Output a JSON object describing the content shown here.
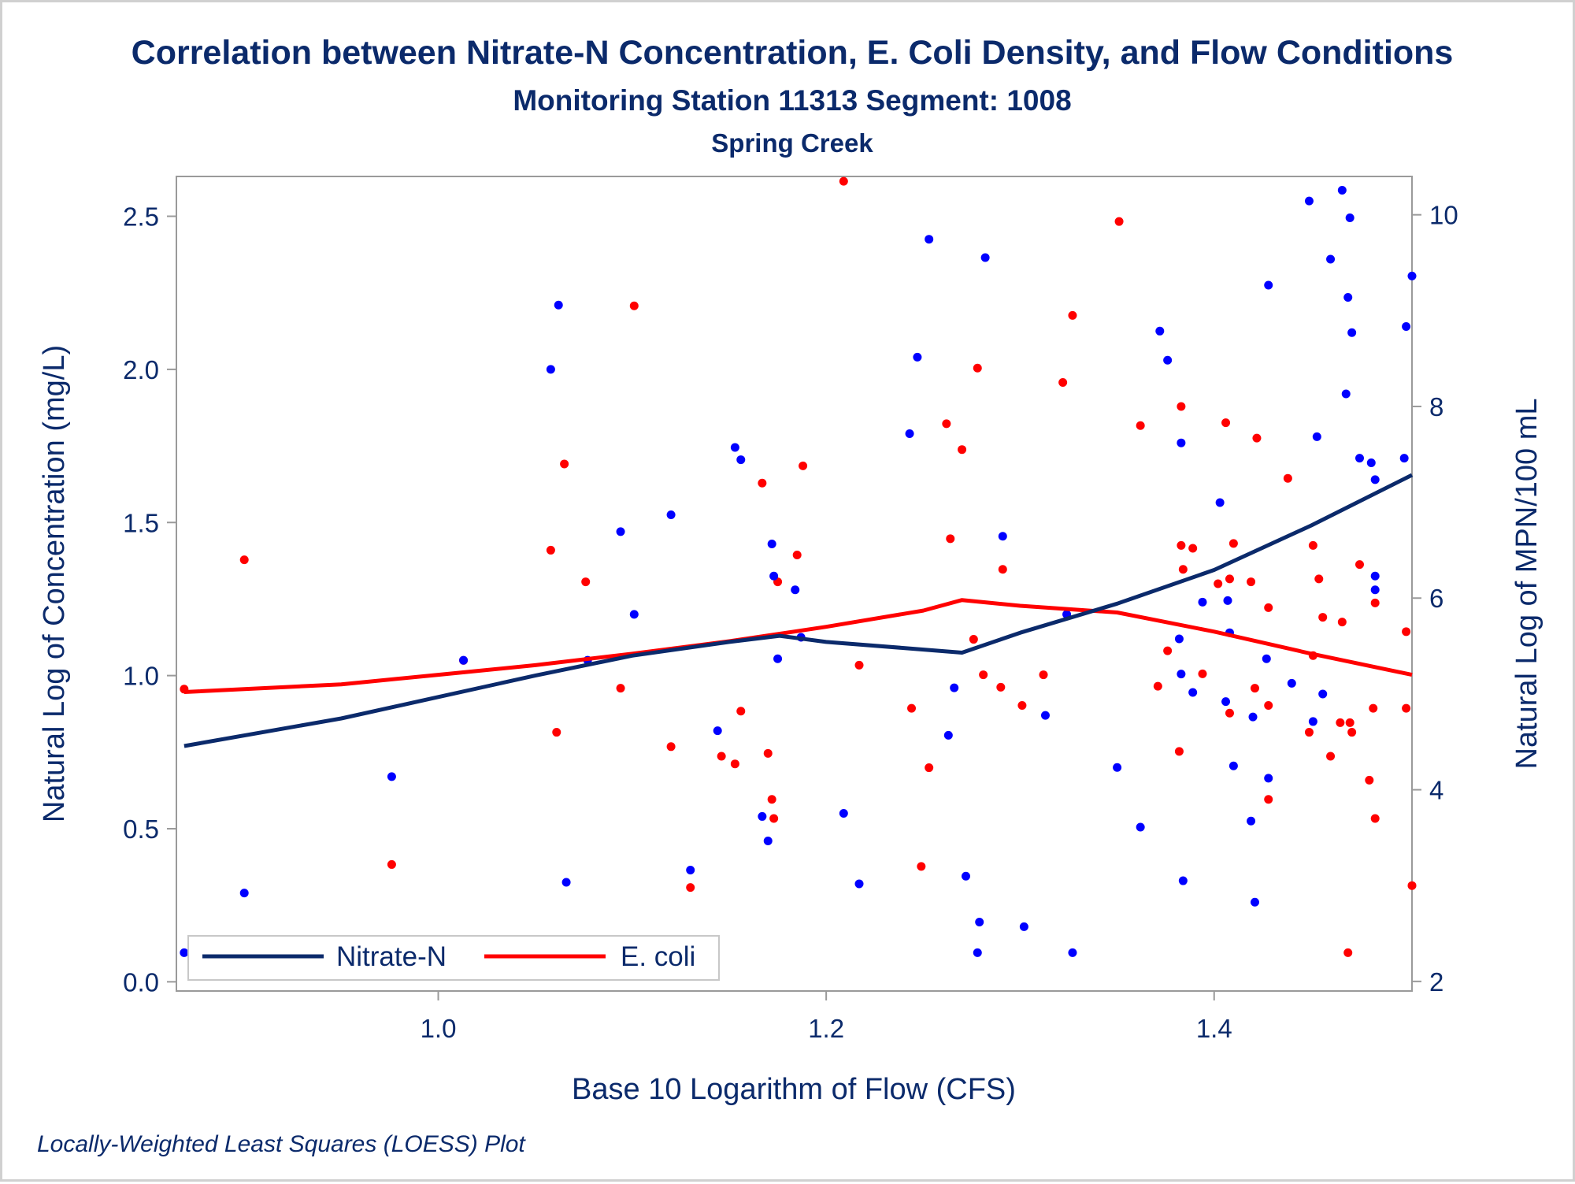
{
  "chart_data": {
    "type": "scatter",
    "title": "Correlation between Nitrate-N Concentration, E. Coli Density, and Flow Conditions",
    "subtitle": "Monitoring Station 11313 Segment: 1008",
    "subtitle2": "Spring Creek",
    "xlabel": "Base 10 Logarithm of Flow (CFS)",
    "ylabel_left": "Natural Log of Concentration (mg/L)",
    "ylabel_right": "Natural Log of MPN/100 mL",
    "footnote": "Locally-Weighted Least Squares (LOESS) Plot",
    "xlim": [
      0.865,
      1.502
    ],
    "ylim_left": [
      -0.03,
      2.63
    ],
    "ylim_right": [
      1.9,
      10.4
    ],
    "x_ticks": [
      "1.0",
      "1.2",
      "1.4"
    ],
    "y_left_ticks": [
      "0.0",
      "0.5",
      "1.0",
      "1.5",
      "2.0",
      "2.5"
    ],
    "y_right_ticks": [
      "2",
      "4",
      "6",
      "8",
      "10"
    ],
    "legend": {
      "placement": "bottom-left",
      "entries": [
        "Nitrate-N",
        "E. coli"
      ]
    },
    "colors": {
      "nitrate": "#0b2a6b",
      "nitrate_points": "#0000ff",
      "ecoli": "#ff0000",
      "text": "#0b2a6b"
    },
    "series": [
      {
        "name": "Nitrate-N",
        "axis": "left",
        "points": [
          [
            0.869,
            0.095
          ],
          [
            0.9,
            0.29
          ],
          [
            0.976,
            0.67
          ],
          [
            1.013,
            1.05
          ],
          [
            1.058,
            2.0
          ],
          [
            1.062,
            2.21
          ],
          [
            1.066,
            0.325
          ],
          [
            1.077,
            1.05
          ],
          [
            1.094,
            1.47
          ],
          [
            1.101,
            1.2
          ],
          [
            1.12,
            1.525
          ],
          [
            1.13,
            0.365
          ],
          [
            1.144,
            0.82
          ],
          [
            1.153,
            1.745
          ],
          [
            1.156,
            1.705
          ],
          [
            1.167,
            0.54
          ],
          [
            1.17,
            0.46
          ],
          [
            1.172,
            1.43
          ],
          [
            1.173,
            1.325
          ],
          [
            1.175,
            1.055
          ],
          [
            1.184,
            1.28
          ],
          [
            1.187,
            1.125
          ],
          [
            1.209,
            0.55
          ],
          [
            1.217,
            0.32
          ],
          [
            1.243,
            1.79
          ],
          [
            1.247,
            2.04
          ],
          [
            1.253,
            2.425
          ],
          [
            1.263,
            0.805
          ],
          [
            1.266,
            0.96
          ],
          [
            1.272,
            0.345
          ],
          [
            1.278,
            0.095
          ],
          [
            1.279,
            0.195
          ],
          [
            1.282,
            2.365
          ],
          [
            1.291,
            1.455
          ],
          [
            1.302,
            0.18
          ],
          [
            1.313,
            0.87
          ],
          [
            1.324,
            1.2
          ],
          [
            1.327,
            0.095
          ],
          [
            1.35,
            0.7
          ],
          [
            1.362,
            0.505
          ],
          [
            1.372,
            2.125
          ],
          [
            1.376,
            2.03
          ],
          [
            1.382,
            1.12
          ],
          [
            1.383,
            1.76
          ],
          [
            1.383,
            1.005
          ],
          [
            1.384,
            0.33
          ],
          [
            1.389,
            0.945
          ],
          [
            1.394,
            1.24
          ],
          [
            1.403,
            1.565
          ],
          [
            1.406,
            0.915
          ],
          [
            1.407,
            1.245
          ],
          [
            1.408,
            1.14
          ],
          [
            1.41,
            0.705
          ],
          [
            1.419,
            0.525
          ],
          [
            1.42,
            0.865
          ],
          [
            1.421,
            0.26
          ],
          [
            1.427,
            1.055
          ],
          [
            1.428,
            2.275
          ],
          [
            1.428,
            0.665
          ],
          [
            1.44,
            0.975
          ],
          [
            1.449,
            2.55
          ],
          [
            1.451,
            0.85
          ],
          [
            1.453,
            1.78
          ],
          [
            1.456,
            0.94
          ],
          [
            1.46,
            2.36
          ],
          [
            1.466,
            2.585
          ],
          [
            1.468,
            1.92
          ],
          [
            1.469,
            2.235
          ],
          [
            1.47,
            2.495
          ],
          [
            1.471,
            2.12
          ],
          [
            1.475,
            1.71
          ],
          [
            1.481,
            1.695
          ],
          [
            1.483,
            1.325
          ],
          [
            1.483,
            1.28
          ],
          [
            1.483,
            1.64
          ],
          [
            1.498,
            1.71
          ],
          [
            1.499,
            2.14
          ],
          [
            1.502,
            2.305
          ]
        ],
        "loess": [
          [
            0.869,
            0.77
          ],
          [
            0.95,
            0.86
          ],
          [
            1.0,
            0.93
          ],
          [
            1.05,
            1.0
          ],
          [
            1.1,
            1.065
          ],
          [
            1.15,
            1.11
          ],
          [
            1.176,
            1.13
          ],
          [
            1.2,
            1.11
          ],
          [
            1.24,
            1.09
          ],
          [
            1.27,
            1.075
          ],
          [
            1.3,
            1.14
          ],
          [
            1.35,
            1.235
          ],
          [
            1.4,
            1.345
          ],
          [
            1.45,
            1.49
          ],
          [
            1.502,
            1.655
          ]
        ]
      },
      {
        "name": "E. coli",
        "axis": "right",
        "points": [
          [
            0.869,
            5.05
          ],
          [
            0.9,
            6.4
          ],
          [
            0.976,
            3.22
          ],
          [
            1.013,
            5.35
          ],
          [
            1.058,
            6.5
          ],
          [
            1.061,
            4.6
          ],
          [
            1.065,
            7.4
          ],
          [
            1.076,
            6.17
          ],
          [
            1.094,
            5.06
          ],
          [
            1.101,
            9.05
          ],
          [
            1.12,
            4.45
          ],
          [
            1.13,
            2.98
          ],
          [
            1.146,
            4.35
          ],
          [
            1.153,
            4.27
          ],
          [
            1.156,
            4.82
          ],
          [
            1.167,
            7.2
          ],
          [
            1.17,
            4.38
          ],
          [
            1.172,
            3.9
          ],
          [
            1.173,
            3.7
          ],
          [
            1.175,
            6.17
          ],
          [
            1.185,
            6.45
          ],
          [
            1.188,
            7.38
          ],
          [
            1.209,
            10.35
          ],
          [
            1.217,
            5.3
          ],
          [
            1.244,
            4.85
          ],
          [
            1.249,
            3.2
          ],
          [
            1.253,
            4.23
          ],
          [
            1.262,
            7.82
          ],
          [
            1.264,
            6.62
          ],
          [
            1.27,
            7.55
          ],
          [
            1.276,
            5.57
          ],
          [
            1.278,
            8.4
          ],
          [
            1.281,
            5.2
          ],
          [
            1.29,
            5.07
          ],
          [
            1.291,
            6.3
          ],
          [
            1.301,
            4.88
          ],
          [
            1.312,
            5.2
          ],
          [
            1.322,
            8.25
          ],
          [
            1.327,
            8.95
          ],
          [
            1.351,
            9.93
          ],
          [
            1.362,
            7.8
          ],
          [
            1.371,
            5.08
          ],
          [
            1.376,
            5.45
          ],
          [
            1.382,
            4.4
          ],
          [
            1.383,
            6.55
          ],
          [
            1.383,
            8.0
          ],
          [
            1.384,
            6.3
          ],
          [
            1.389,
            6.52
          ],
          [
            1.394,
            5.21
          ],
          [
            1.402,
            6.15
          ],
          [
            1.406,
            7.83
          ],
          [
            1.408,
            4.8
          ],
          [
            1.408,
            6.2
          ],
          [
            1.41,
            6.57
          ],
          [
            1.419,
            6.17
          ],
          [
            1.421,
            5.06
          ],
          [
            1.422,
            7.67
          ],
          [
            1.428,
            4.88
          ],
          [
            1.428,
            5.9
          ],
          [
            1.428,
            3.9
          ],
          [
            1.438,
            7.25
          ],
          [
            1.449,
            4.6
          ],
          [
            1.451,
            5.4
          ],
          [
            1.451,
            6.55
          ],
          [
            1.454,
            6.2
          ],
          [
            1.456,
            5.8
          ],
          [
            1.46,
            4.35
          ],
          [
            1.465,
            4.7
          ],
          [
            1.466,
            5.75
          ],
          [
            1.469,
            2.3
          ],
          [
            1.47,
            4.7
          ],
          [
            1.471,
            4.6
          ],
          [
            1.475,
            6.35
          ],
          [
            1.48,
            4.1
          ],
          [
            1.482,
            4.85
          ],
          [
            1.483,
            5.95
          ],
          [
            1.483,
            3.7
          ],
          [
            1.499,
            5.65
          ],
          [
            1.499,
            4.85
          ],
          [
            1.502,
            3.0
          ]
        ],
        "loess": [
          [
            0.869,
            5.02
          ],
          [
            0.95,
            5.1
          ],
          [
            1.0,
            5.2
          ],
          [
            1.05,
            5.3
          ],
          [
            1.1,
            5.42
          ],
          [
            1.15,
            5.55
          ],
          [
            1.2,
            5.7
          ],
          [
            1.25,
            5.87
          ],
          [
            1.27,
            5.98
          ],
          [
            1.3,
            5.92
          ],
          [
            1.35,
            5.85
          ],
          [
            1.4,
            5.65
          ],
          [
            1.45,
            5.42
          ],
          [
            1.502,
            5.2
          ]
        ]
      }
    ]
  }
}
